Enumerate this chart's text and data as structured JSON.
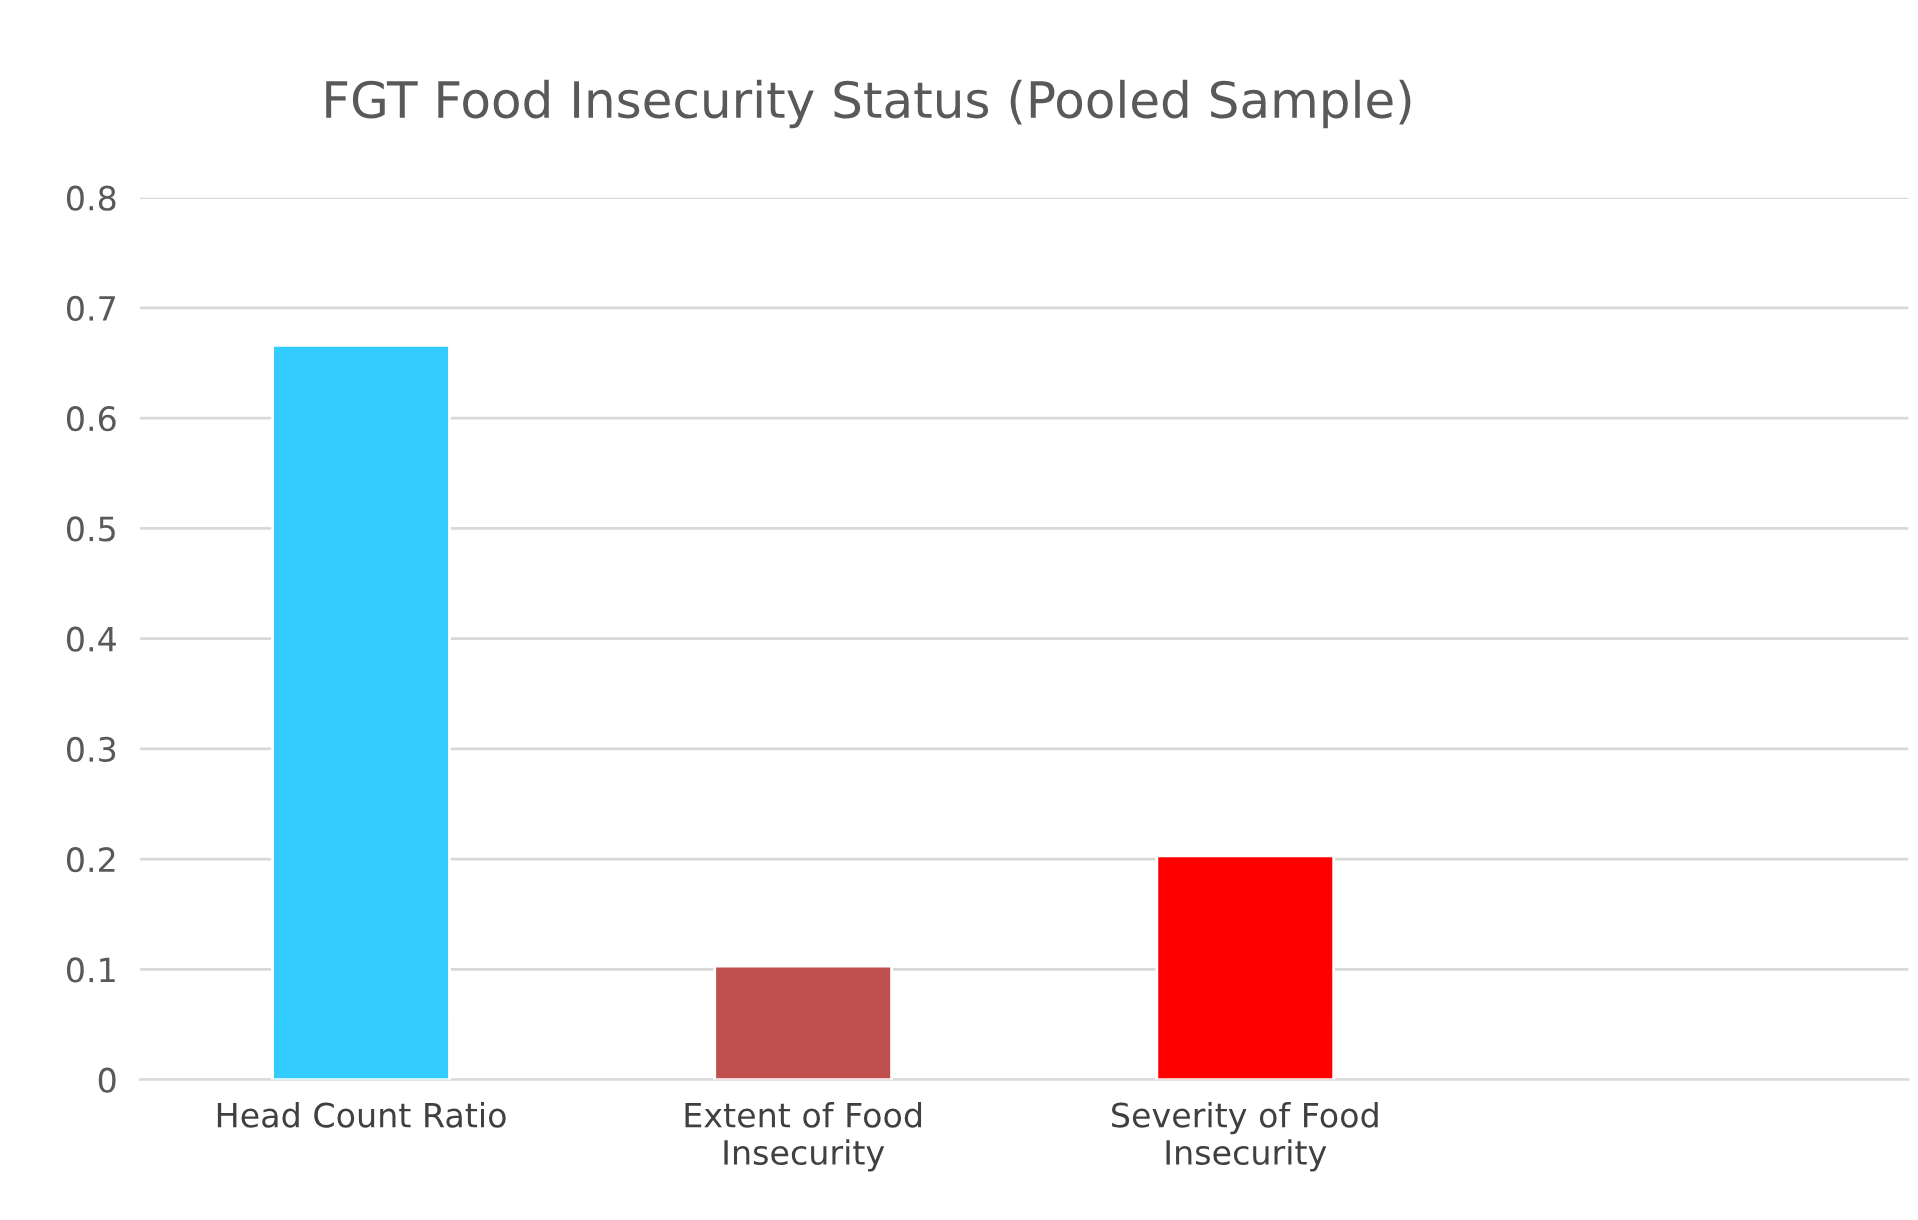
{
  "chart_data": {
    "type": "bar",
    "title": "FGT Food Insecurity Status (Pooled Sample)",
    "categories": [
      "Head Count Ratio",
      "Extent of Food\nInsecurity",
      "Severity of Food\nInsecurity",
      null
    ],
    "values": [
      0.666,
      0.103,
      0.203,
      null
    ],
    "colors": [
      "#33ccff",
      "#c0504d",
      "#ff0000",
      "#808080"
    ],
    "ylim": [
      0,
      0.8
    ],
    "yticks": [
      0,
      0.1,
      0.2,
      0.3,
      0.4,
      0.5,
      0.6,
      0.7,
      0.8
    ],
    "grid": "y",
    "legend": false
  }
}
